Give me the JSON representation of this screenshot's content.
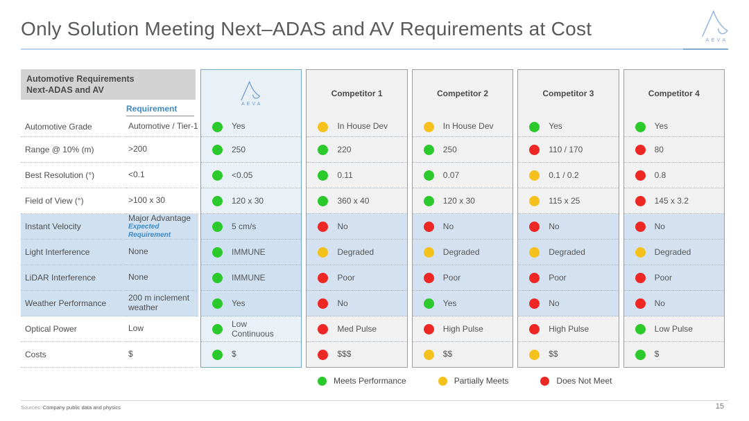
{
  "page": {
    "title": "Only Solution Meeting Next–ADAS and AV Requirements at Cost",
    "page_number": "15",
    "sources_label": "Sources:",
    "sources_text": "Company public data and physics"
  },
  "brand": {
    "name": "AEVA"
  },
  "table": {
    "corner_line1": "Automotive Requirements",
    "corner_line2": "Next-ADAS and AV",
    "requirement_header": "Requirement",
    "columns": [
      "AEVA",
      "Competitor 1",
      "Competitor 2",
      "Competitor 3",
      "Competitor 4"
    ],
    "rows": [
      {
        "label": "Automotive Grade",
        "requirement": "Automotive / Tier-1",
        "requirement_note": "",
        "highlighted": false,
        "cells": [
          {
            "status": "green",
            "value": "Yes"
          },
          {
            "status": "yellow",
            "value": "In House Dev"
          },
          {
            "status": "yellow",
            "value": "In House Dev"
          },
          {
            "status": "green",
            "value": "Yes"
          },
          {
            "status": "green",
            "value": "Yes"
          }
        ]
      },
      {
        "label": "Range @ 10% (m)",
        "requirement": ">200",
        "requirement_note": "",
        "highlighted": false,
        "cells": [
          {
            "status": "green",
            "value": "250"
          },
          {
            "status": "green",
            "value": "220"
          },
          {
            "status": "green",
            "value": "250"
          },
          {
            "status": "red",
            "value": "110 / 170"
          },
          {
            "status": "red",
            "value": "80"
          }
        ]
      },
      {
        "label": "Best Resolution (°)",
        "requirement": "<0.1",
        "requirement_note": "",
        "highlighted": false,
        "cells": [
          {
            "status": "green",
            "value": "<0.05"
          },
          {
            "status": "green",
            "value": "0.11"
          },
          {
            "status": "green",
            "value": "0.07"
          },
          {
            "status": "yellow",
            "value": "0.1 / 0.2"
          },
          {
            "status": "red",
            "value": "0.8"
          }
        ]
      },
      {
        "label": "Field of View (°)",
        "requirement": ">100 x 30",
        "requirement_note": "",
        "highlighted": false,
        "cells": [
          {
            "status": "green",
            "value": "120 x 30"
          },
          {
            "status": "green",
            "value": "360 x 40"
          },
          {
            "status": "green",
            "value": "120 x 30"
          },
          {
            "status": "yellow",
            "value": "115 x 25"
          },
          {
            "status": "red",
            "value": "145 x 3.2"
          }
        ]
      },
      {
        "label": "Instant Velocity",
        "requirement": "Major Advantage",
        "requirement_note": "Expected Requirement",
        "highlighted": true,
        "cells": [
          {
            "status": "green",
            "value": "5 cm/s"
          },
          {
            "status": "red",
            "value": "No"
          },
          {
            "status": "red",
            "value": "No"
          },
          {
            "status": "red",
            "value": "No"
          },
          {
            "status": "red",
            "value": "No"
          }
        ]
      },
      {
        "label": "Light Interference",
        "requirement": "None",
        "requirement_note": "",
        "highlighted": true,
        "cells": [
          {
            "status": "green",
            "value": "IMMUNE"
          },
          {
            "status": "yellow",
            "value": "Degraded"
          },
          {
            "status": "yellow",
            "value": "Degraded"
          },
          {
            "status": "yellow",
            "value": "Degraded"
          },
          {
            "status": "yellow",
            "value": "Degraded"
          }
        ]
      },
      {
        "label": "LiDAR Interference",
        "requirement": "None",
        "requirement_note": "",
        "highlighted": true,
        "cells": [
          {
            "status": "green",
            "value": "IMMUNE"
          },
          {
            "status": "red",
            "value": "Poor"
          },
          {
            "status": "red",
            "value": "Poor"
          },
          {
            "status": "red",
            "value": "Poor"
          },
          {
            "status": "red",
            "value": "Poor"
          }
        ]
      },
      {
        "label": "Weather Performance",
        "requirement": "200 m inclement weather",
        "requirement_note": "",
        "highlighted": true,
        "cells": [
          {
            "status": "green",
            "value": "Yes"
          },
          {
            "status": "red",
            "value": "No"
          },
          {
            "status": "green",
            "value": "Yes"
          },
          {
            "status": "red",
            "value": "No"
          },
          {
            "status": "red",
            "value": "No"
          }
        ]
      },
      {
        "label": "Optical Power",
        "requirement": "Low",
        "requirement_note": "",
        "highlighted": false,
        "cells": [
          {
            "status": "green",
            "value": "Low Continuous"
          },
          {
            "status": "red",
            "value": "Med Pulse"
          },
          {
            "status": "red",
            "value": "High Pulse"
          },
          {
            "status": "red",
            "value": "High Pulse"
          },
          {
            "status": "green",
            "value": "Low Pulse"
          }
        ]
      },
      {
        "label": "Costs",
        "requirement": "$",
        "requirement_note": "",
        "highlighted": false,
        "cells": [
          {
            "status": "green",
            "value": "$"
          },
          {
            "status": "red",
            "value": "$$$"
          },
          {
            "status": "yellow",
            "value": "$$"
          },
          {
            "status": "yellow",
            "value": "$$"
          },
          {
            "status": "green",
            "value": "$"
          }
        ]
      }
    ]
  },
  "legend": {
    "items": [
      {
        "status": "green",
        "label": "Meets Performance"
      },
      {
        "status": "yellow",
        "label": "Partially Meets"
      },
      {
        "status": "red",
        "label": "Does Not Meet"
      }
    ]
  },
  "colors": {
    "green": "#2bc92b",
    "yellow": "#f5c21d",
    "red": "#ec2724",
    "accent_blue": "#3d8ac9",
    "title_underline": "#b7d3ea",
    "highlight_row": "#cfe0f1",
    "aeva_column_bg": "#e9f1f6",
    "aeva_column_border": "#74a7c0",
    "competitor_column_bg": "#f1f1f1",
    "competitor_column_border": "#9e9e9e"
  }
}
